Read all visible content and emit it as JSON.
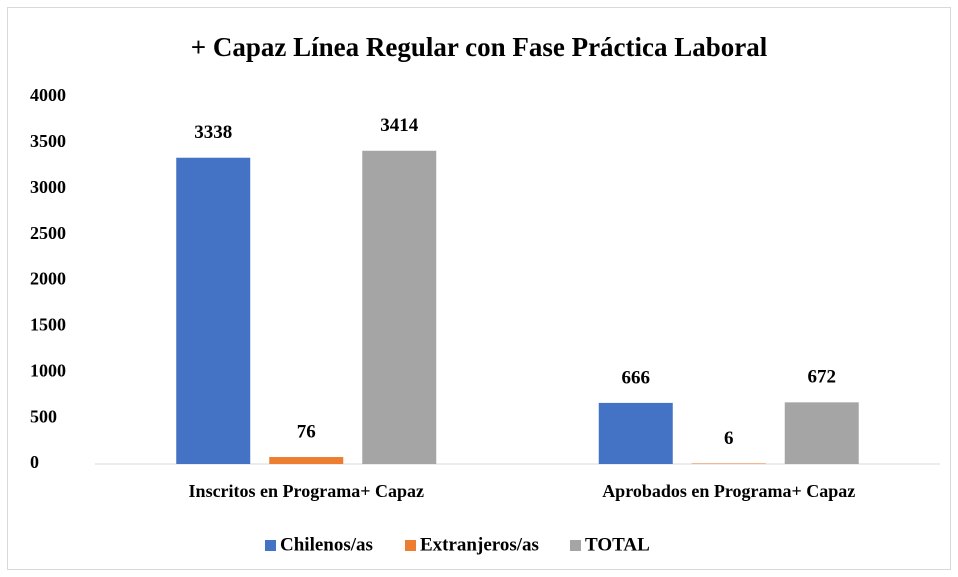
{
  "chart_data": {
    "type": "bar",
    "title": "+ Capaz Línea Regular con Fase Práctica Laboral",
    "categories": [
      "Inscritos en Programa+ Capaz",
      "Aprobados en Programa+ Capaz"
    ],
    "series": [
      {
        "name": "Chilenos/as",
        "color": "#4472c4",
        "values": [
          3338,
          666
        ]
      },
      {
        "name": "Extranjeros/as",
        "color": "#ed7d31",
        "values": [
          76,
          6
        ]
      },
      {
        "name": "TOTAL",
        "color": "#a5a5a5",
        "values": [
          3414,
          672
        ]
      }
    ],
    "ylim": [
      0,
      4000
    ],
    "yticks": [
      0,
      500,
      1000,
      1500,
      2000,
      2500,
      3000,
      3500,
      4000
    ],
    "grid": false,
    "legend": "bottom"
  }
}
